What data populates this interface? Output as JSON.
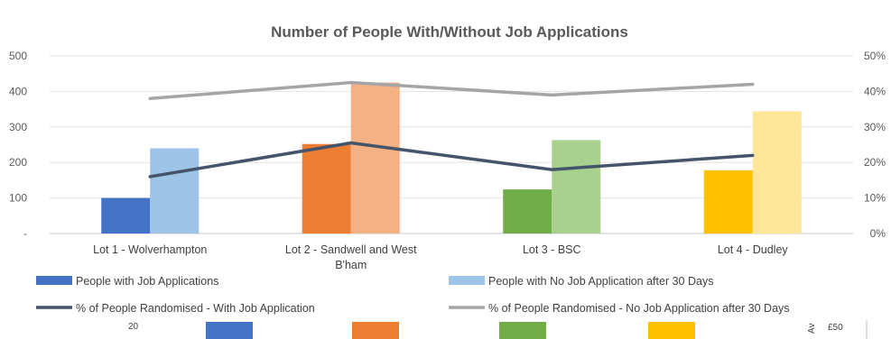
{
  "chart_data": {
    "type": "bar",
    "title": "Number of People With/Without Job Applications",
    "categories": [
      "Lot 1 - Wolverhampton",
      "Lot 2 - Sandwell and West B'ham",
      "Lot 3 - BSC",
      "Lot 4 - Dudley"
    ],
    "category_lines": [
      [
        "Lot 1 - Wolverhampton"
      ],
      [
        "Lot 2 - Sandwell and West",
        "B'ham"
      ],
      [
        "Lot 3 - BSC"
      ],
      [
        "Lot 4 - Dudley"
      ]
    ],
    "series": [
      {
        "name": "People with Job Applications",
        "kind": "bar",
        "axis": "left",
        "values": [
          100,
          252,
          124,
          178
        ],
        "colors": [
          "#4472C4",
          "#ED7D31",
          "#70AD47",
          "#FFC000"
        ]
      },
      {
        "name": "People with No Job Application after 30 Days",
        "kind": "bar",
        "axis": "left",
        "values": [
          240,
          425,
          263,
          344
        ],
        "colors": [
          "#9DC3E6",
          "#F4B183",
          "#A9D18E",
          "#FFE699"
        ]
      },
      {
        "name": "% of People Randomised - With Job Application",
        "kind": "line",
        "axis": "right",
        "values": [
          16,
          25.5,
          18,
          22
        ],
        "color": "#44546A"
      },
      {
        "name": "% of People Randomised - No Job Application after 30 Days",
        "kind": "line",
        "axis": "right",
        "values": [
          38,
          42.5,
          39,
          42
        ],
        "color": "#A5A5A5"
      }
    ],
    "ylim_left": [
      0,
      500
    ],
    "yticks_left": [
      "-",
      "100",
      "200",
      "300",
      "400",
      "500"
    ],
    "ylim_right": [
      0,
      50
    ],
    "yticks_right": [
      "0%",
      "10%",
      "20%",
      "30%",
      "40%",
      "50%"
    ],
    "grid": "horizontal",
    "legend_position": "bottom"
  },
  "below_chart": {
    "left_label": "20",
    "right_label": "£50",
    "vertical_text": "Av",
    "bar_colors": [
      "#4472C4",
      "#ED7D31",
      "#70AD47",
      "#FFC000"
    ]
  }
}
